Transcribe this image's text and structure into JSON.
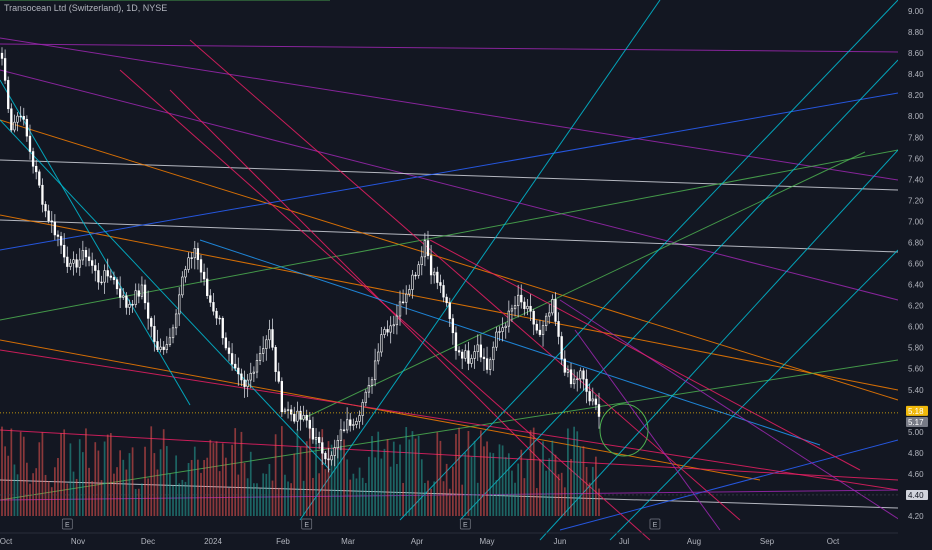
{
  "header": {
    "title": "Transocean Ltd (Switzerland), 1D, NYSE"
  },
  "colors": {
    "background": "#131722",
    "up": "#ffffff",
    "down": "#ffffff",
    "volume_up": "#26a69a",
    "volume_down": "#ef5350",
    "price_line": "#f0b90b"
  },
  "chart_data": {
    "type": "candlestick",
    "title": "Transocean Ltd (Switzerland), 1D, NYSE",
    "xlabel": "",
    "ylabel": "",
    "ylim": [
      4.1,
      9.1
    ],
    "grid": false,
    "y_ticks": [
      "9.00",
      "8.80",
      "8.60",
      "8.40",
      "8.20",
      "8.00",
      "7.80",
      "7.60",
      "7.40",
      "7.20",
      "7.00",
      "6.80",
      "6.60",
      "6.40",
      "6.20",
      "6.00",
      "5.80",
      "5.60",
      "5.40",
      "5.00",
      "4.80",
      "4.60",
      "4.40",
      "4.20"
    ],
    "x_ticks": [
      "Oct",
      "Nov",
      "Dec",
      "2024",
      "Feb",
      "Mar",
      "Apr",
      "May",
      "Jun",
      "Jul",
      "Aug",
      "Sep",
      "Oct"
    ],
    "price_labels": [
      {
        "text": "5.18",
        "value": 5.18,
        "color": "#f0b90b",
        "kind": "last-price"
      },
      {
        "text": "5.17",
        "value": 5.17,
        "color": "#787b86",
        "kind": "crosshair"
      },
      {
        "text": "4.40",
        "value": 4.4,
        "color": "#d1d4dc",
        "kind": "level"
      }
    ],
    "event_markers": [
      {
        "text": "E",
        "date_index": 21
      },
      {
        "text": "E",
        "date_index": 98
      },
      {
        "text": "E",
        "date_index": 149
      },
      {
        "text": "E",
        "date_index": 210
      }
    ],
    "anchors": [
      [
        0,
        8.55
      ],
      [
        3,
        7.9
      ],
      [
        6,
        8.05
      ],
      [
        10,
        7.55
      ],
      [
        14,
        7.1
      ],
      [
        18,
        6.85
      ],
      [
        22,
        6.55
      ],
      [
        27,
        6.7
      ],
      [
        31,
        6.45
      ],
      [
        35,
        6.5
      ],
      [
        40,
        6.2
      ],
      [
        45,
        6.35
      ],
      [
        50,
        5.75
      ],
      [
        54,
        5.9
      ],
      [
        58,
        6.45
      ],
      [
        62,
        6.75
      ],
      [
        66,
        6.3
      ],
      [
        70,
        6.05
      ],
      [
        74,
        5.6
      ],
      [
        78,
        5.4
      ],
      [
        82,
        5.7
      ],
      [
        86,
        5.95
      ],
      [
        90,
        5.25
      ],
      [
        94,
        5.15
      ],
      [
        98,
        5.1
      ],
      [
        102,
        4.85
      ],
      [
        106,
        4.75
      ],
      [
        110,
        5.05
      ],
      [
        114,
        5.15
      ],
      [
        118,
        5.4
      ],
      [
        122,
        5.95
      ],
      [
        126,
        6.05
      ],
      [
        130,
        6.35
      ],
      [
        134,
        6.6
      ],
      [
        136,
        6.82
      ],
      [
        138,
        6.55
      ],
      [
        142,
        6.3
      ],
      [
        146,
        5.8
      ],
      [
        150,
        5.7
      ],
      [
        153,
        5.85
      ],
      [
        156,
        5.6
      ],
      [
        159,
        5.9
      ],
      [
        163,
        6.1
      ],
      [
        166,
        6.25
      ],
      [
        170,
        6.1
      ],
      [
        173,
        5.9
      ],
      [
        177,
        6.2
      ],
      [
        180,
        5.7
      ],
      [
        183,
        5.45
      ],
      [
        186,
        5.55
      ],
      [
        189,
        5.3
      ],
      [
        192,
        5.2
      ]
    ],
    "volume_range": [
      0.3,
      1.0
    ]
  }
}
